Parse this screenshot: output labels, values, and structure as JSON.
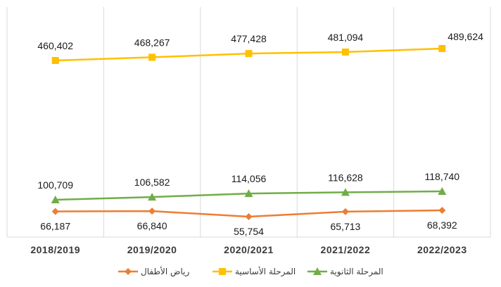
{
  "chart_data": {
    "type": "line",
    "categories": [
      "2018/2019",
      "2019/2020",
      "2020/2021",
      "2021/2022",
      "2022/2023"
    ],
    "series": [
      {
        "name": "المرحلة الأساسية",
        "values": [
          460402,
          468267,
          477428,
          481094,
          489624
        ],
        "labels": [
          "460,402",
          "468,267",
          "477,428",
          "481,094",
          "489,624"
        ],
        "color": "#FFC000",
        "marker": "square"
      },
      {
        "name": "المرحلة الثانوية",
        "values": [
          100709,
          106582,
          114056,
          116628,
          118740
        ],
        "labels": [
          "100,709",
          "106,582",
          "114,056",
          "116,628",
          "118,740"
        ],
        "color": "#70AD47",
        "marker": "triangle"
      },
      {
        "name": "رياض الأطفال",
        "values": [
          66187,
          66840,
          55754,
          65713,
          68392
        ],
        "labels": [
          "66,187",
          "66,840",
          "55,754",
          "65,713",
          "68,392"
        ],
        "color": "#ED7D31",
        "marker": "diamond"
      }
    ],
    "legend_order": [
      "رياض الأطفال",
      "المرحلة الأساسية",
      "المرحلة الثانوية"
    ],
    "legend_position": "bottom",
    "grid": "vertical",
    "gridline_color": "#d9d9d9"
  }
}
